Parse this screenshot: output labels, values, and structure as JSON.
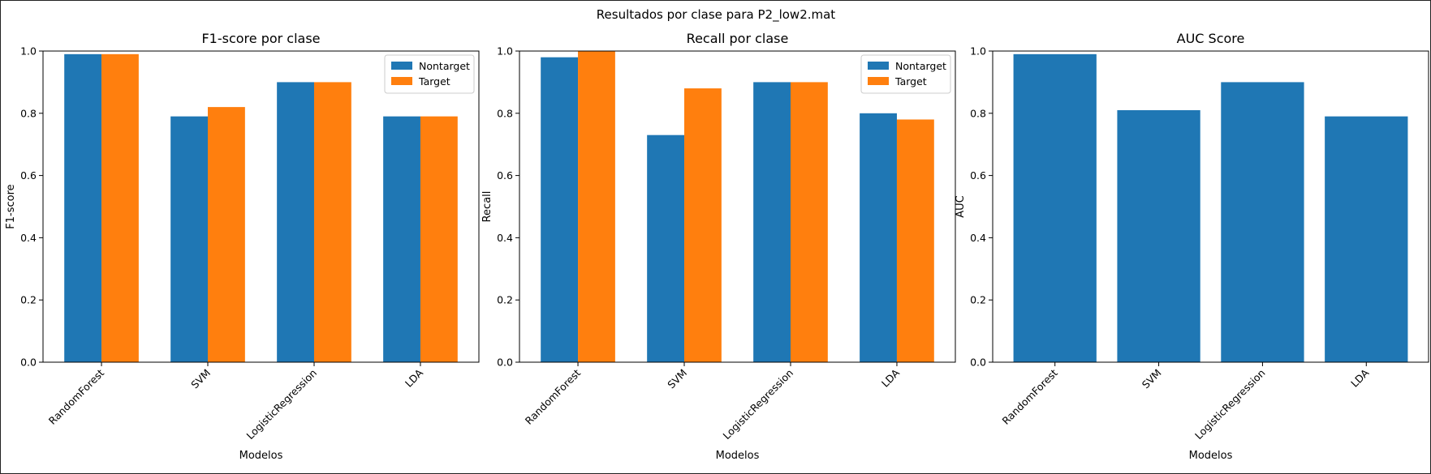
{
  "figure": {
    "suptitle": "Resultados por clase para P2_low2.mat"
  },
  "colors": {
    "nontarget": "#1f77b4",
    "target": "#ff7f0e"
  },
  "chart_data": [
    {
      "type": "bar",
      "title": "F1-score por clase",
      "xlabel": "Modelos",
      "ylabel": "F1-score",
      "ylim": [
        0,
        1.0
      ],
      "yticks": [
        "0.0",
        "0.2",
        "0.4",
        "0.6",
        "0.8",
        "1.0"
      ],
      "categories": [
        "RandomForest",
        "SVM",
        "LogisticRegression",
        "LDA"
      ],
      "legend": "top-right",
      "series": [
        {
          "name": "Nontarget",
          "values": [
            0.99,
            0.79,
            0.9,
            0.79
          ]
        },
        {
          "name": "Target",
          "values": [
            0.99,
            0.82,
            0.9,
            0.79
          ]
        }
      ]
    },
    {
      "type": "bar",
      "title": "Recall por clase",
      "xlabel": "Modelos",
      "ylabel": "Recall",
      "ylim": [
        0,
        1.0
      ],
      "yticks": [
        "0.0",
        "0.2",
        "0.4",
        "0.6",
        "0.8",
        "1.0"
      ],
      "categories": [
        "RandomForest",
        "SVM",
        "LogisticRegression",
        "LDA"
      ],
      "legend": "top-right",
      "series": [
        {
          "name": "Nontarget",
          "values": [
            0.98,
            0.73,
            0.9,
            0.8
          ]
        },
        {
          "name": "Target",
          "values": [
            1.0,
            0.88,
            0.9,
            0.78
          ]
        }
      ]
    },
    {
      "type": "bar",
      "title": "AUC Score",
      "xlabel": "Modelos",
      "ylabel": "AUC",
      "ylim": [
        0,
        1.0
      ],
      "yticks": [
        "0.0",
        "0.2",
        "0.4",
        "0.6",
        "0.8",
        "1.0"
      ],
      "categories": [
        "RandomForest",
        "SVM",
        "LogisticRegression",
        "LDA"
      ],
      "series": [
        {
          "values": [
            0.99,
            0.81,
            0.9,
            0.79
          ]
        }
      ]
    }
  ]
}
